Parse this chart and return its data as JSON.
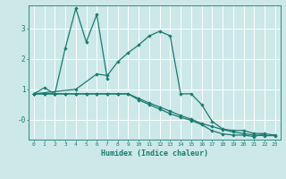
{
  "title": "",
  "xlabel": "Humidex (Indice chaleur)",
  "bg_color": "#cce8e8",
  "line_color": "#1a7a6e",
  "grid_color": "#ffffff",
  "xlim": [
    -0.5,
    23.5
  ],
  "ylim": [
    -0.65,
    3.75
  ],
  "yticks": [
    0,
    1,
    2,
    3
  ],
  "ytick_labels": [
    "-0",
    "1",
    "2",
    "3"
  ],
  "xticks": [
    0,
    1,
    2,
    3,
    4,
    5,
    6,
    7,
    8,
    9,
    10,
    11,
    12,
    13,
    14,
    15,
    16,
    17,
    18,
    19,
    20,
    21,
    22,
    23
  ],
  "series": [
    {
      "x": [
        0,
        1,
        2,
        3,
        4,
        5,
        6,
        7
      ],
      "y": [
        0.85,
        1.05,
        0.85,
        2.35,
        3.65,
        2.55,
        3.45,
        1.35
      ]
    },
    {
      "x": [
        0,
        4,
        6,
        7,
        8,
        9,
        10,
        11,
        12,
        13,
        14,
        15,
        16,
        17,
        18,
        19,
        20,
        21,
        22
      ],
      "y": [
        0.85,
        1.0,
        1.5,
        1.45,
        1.9,
        2.2,
        2.45,
        2.75,
        2.9,
        2.75,
        0.85,
        0.85,
        0.5,
        -0.05,
        -0.3,
        -0.35,
        -0.35,
        -0.45,
        -0.45
      ]
    },
    {
      "x": [
        0,
        1,
        2,
        3,
        4,
        5,
        6,
        7,
        8,
        9,
        10,
        11,
        12,
        13,
        14,
        15,
        16,
        17,
        18,
        19,
        20,
        21,
        22,
        23
      ],
      "y": [
        0.85,
        0.85,
        0.85,
        0.85,
        0.85,
        0.85,
        0.85,
        0.85,
        0.85,
        0.85,
        0.7,
        0.55,
        0.42,
        0.28,
        0.14,
        0.02,
        -0.12,
        -0.22,
        -0.32,
        -0.4,
        -0.45,
        -0.5,
        -0.52,
        -0.52
      ]
    },
    {
      "x": [
        0,
        1,
        2,
        3,
        4,
        5,
        6,
        7,
        8,
        9,
        10,
        11,
        12,
        13,
        14,
        15,
        16,
        17,
        18,
        19,
        20,
        21,
        22,
        23
      ],
      "y": [
        0.85,
        0.85,
        0.85,
        0.85,
        0.85,
        0.85,
        0.85,
        0.85,
        0.85,
        0.85,
        0.65,
        0.5,
        0.35,
        0.2,
        0.08,
        -0.02,
        -0.16,
        -0.36,
        -0.46,
        -0.5,
        -0.5,
        -0.55,
        -0.46,
        -0.5
      ]
    }
  ]
}
